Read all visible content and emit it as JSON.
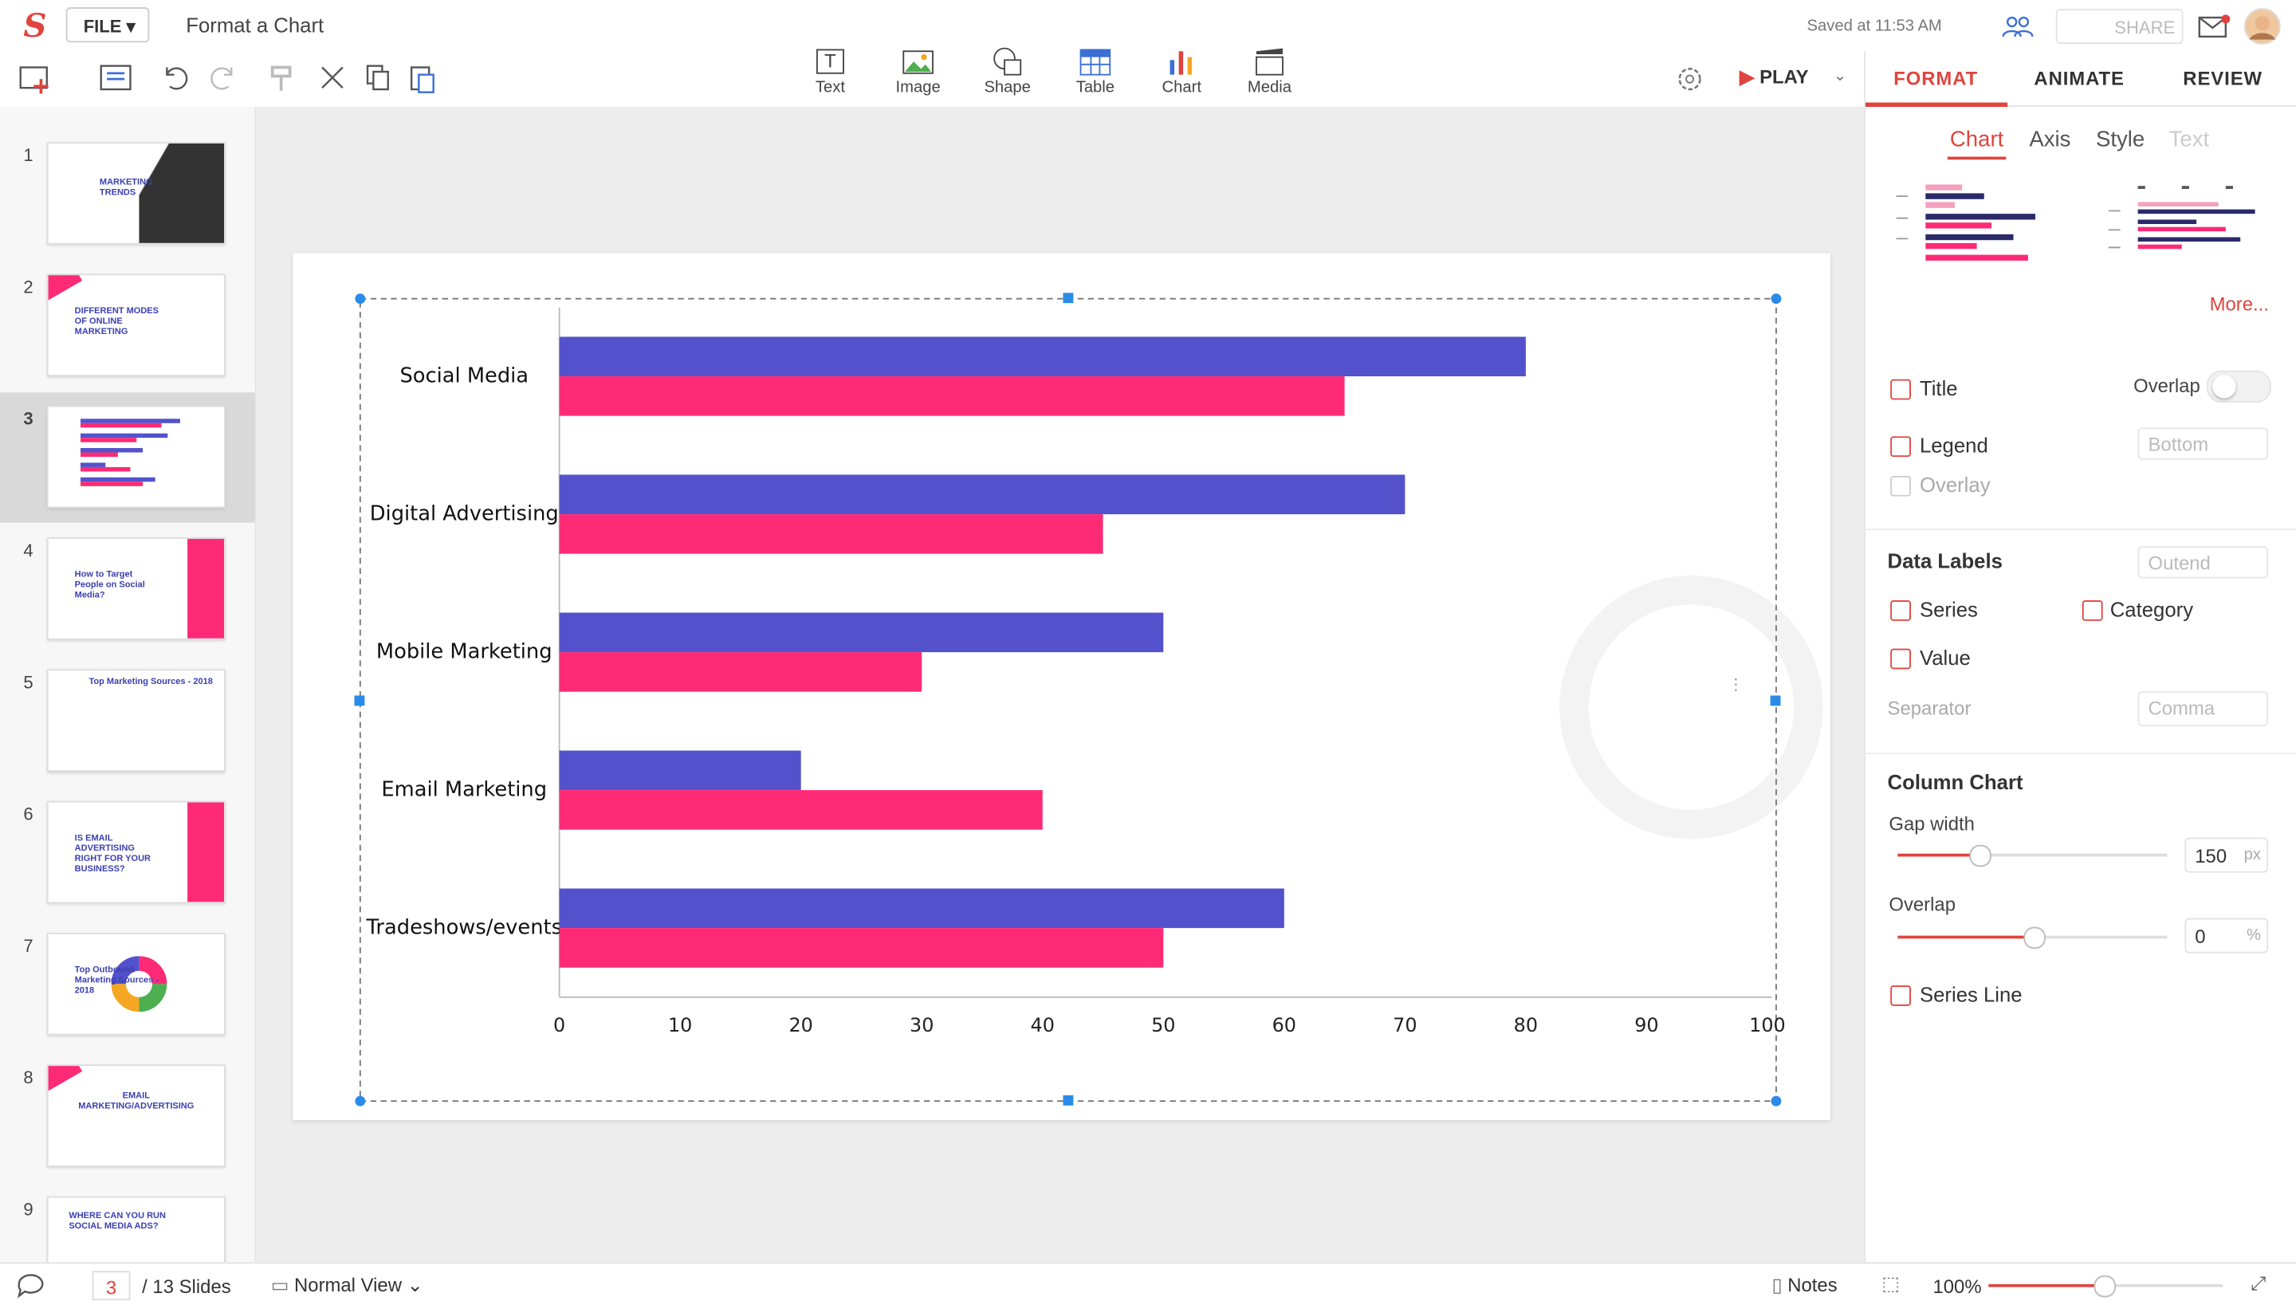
{
  "toolbar": {
    "file": "FILE",
    "doc_title": "Format a Chart",
    "saved": "Saved at 11:53 AM",
    "share": "SHARE",
    "play": "PLAY",
    "insert": [
      "Text",
      "Image",
      "Shape",
      "Table",
      "Chart",
      "Media"
    ]
  },
  "panel_tabs": [
    "FORMAT",
    "ANIMATE",
    "REVIEW"
  ],
  "sub_tabs": [
    "Chart",
    "Axis",
    "Style",
    "Text"
  ],
  "format": {
    "more": "More...",
    "title": "Title",
    "overlap_toggle": "Overlap",
    "legend": "Legend",
    "legend_position": "Bottom",
    "overlay": "Overlay",
    "data_labels": "Data Labels",
    "data_labels_position": "Outend",
    "series": "Series",
    "category": "Category",
    "value": "Value",
    "separator": "Separator",
    "separator_value": "Comma",
    "column_chart": "Column Chart",
    "gap_width": "Gap width",
    "gap_width_value": 150,
    "gap_width_unit": "px",
    "overlap": "Overlap",
    "overlap_value": 0,
    "overlap_unit": "%",
    "series_line": "Series Line"
  },
  "slides": {
    "numbers": [
      1,
      2,
      3,
      4,
      5,
      6,
      7,
      8,
      9
    ],
    "titles": [
      "MARKETING TRENDS",
      "DIFFERENT MODES OF ONLINE MARKETING",
      null,
      "How to Target People on Social Media?",
      "Top Marketing Sources - 2018",
      "IS EMAIL ADVERTISING RIGHT FOR YOUR BUSINESS?",
      "Top Outbound Marketing Sources - 2018",
      "EMAIL MARKETING/ADVERTISING",
      "WHERE CAN YOU RUN SOCIAL MEDIA ADS?"
    ]
  },
  "status": {
    "current_slide": 3,
    "total": "/ 13 Slides",
    "view": "Normal View",
    "notes": "Notes",
    "zoom": "100%"
  },
  "chart_data": {
    "type": "bar",
    "orientation": "horizontal",
    "categories": [
      "Social Media",
      "Digital Advertising",
      "Mobile Marketing",
      "Email Marketing",
      "Tradeshows/events"
    ],
    "series": [
      {
        "color": "#5352cc",
        "values": [
          80,
          70,
          50,
          20,
          60
        ]
      },
      {
        "color": "#ff2a75",
        "values": [
          65,
          45,
          30,
          40,
          50
        ]
      }
    ],
    "xlim": [
      0,
      100
    ],
    "xticks": [
      0,
      10,
      20,
      30,
      40,
      50,
      60,
      70,
      80,
      90,
      100
    ],
    "grid": false
  }
}
